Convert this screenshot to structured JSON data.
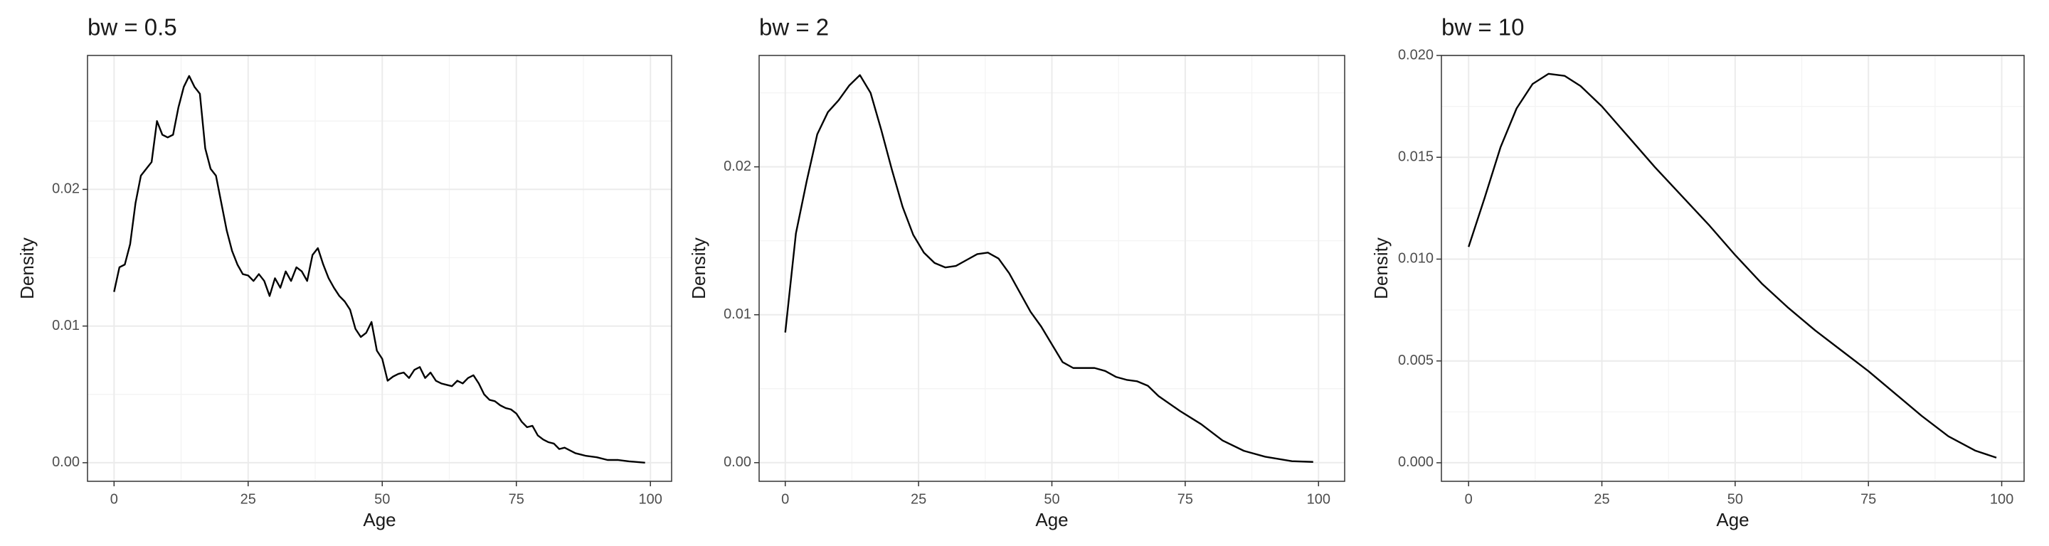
{
  "chart_data": [
    {
      "type": "line",
      "title": "bw = 0.5",
      "xlabel": "Age",
      "ylabel": "Density",
      "color": "#000000",
      "grid": true,
      "xlim": [
        -4.95,
        103.95
      ],
      "ylim": [
        -0.00136,
        0.0298
      ],
      "xticks": [
        0,
        25,
        50,
        75,
        100
      ],
      "yticks": [
        {
          "value": 0,
          "label": "0.00"
        },
        0.01,
        0.02
      ],
      "xminor": [
        12.5,
        37.5,
        62.5,
        87.5
      ],
      "yminor": [
        0.005,
        0.015,
        0.025
      ],
      "x": [
        0,
        1,
        2,
        3,
        4,
        5,
        6,
        7,
        8,
        9,
        10,
        11,
        12,
        13,
        14,
        15,
        16,
        17,
        18,
        19,
        20,
        21,
        22,
        23,
        24,
        25,
        26,
        27,
        28,
        29,
        30,
        31,
        32,
        33,
        34,
        35,
        36,
        37,
        38,
        39,
        40,
        41,
        42,
        43,
        44,
        45,
        46,
        47,
        48,
        49,
        50,
        51,
        52,
        53,
        54,
        55,
        56,
        57,
        58,
        59,
        60,
        61,
        62,
        63,
        64,
        65,
        66,
        67,
        68,
        69,
        70,
        71,
        72,
        73,
        74,
        75,
        76,
        77,
        78,
        79,
        80,
        81,
        82,
        83,
        84,
        85,
        86,
        87,
        88,
        90,
        92,
        94,
        96,
        99
      ],
      "values": [
        0.0125,
        0.0143,
        0.0145,
        0.016,
        0.019,
        0.021,
        0.0215,
        0.022,
        0.025,
        0.024,
        0.0238,
        0.024,
        0.026,
        0.0275,
        0.0283,
        0.0275,
        0.027,
        0.023,
        0.0215,
        0.021,
        0.019,
        0.017,
        0.0155,
        0.0145,
        0.0138,
        0.0137,
        0.0133,
        0.0138,
        0.0133,
        0.0122,
        0.0135,
        0.0128,
        0.014,
        0.0133,
        0.0143,
        0.014,
        0.0133,
        0.0152,
        0.0157,
        0.0145,
        0.0135,
        0.0128,
        0.0122,
        0.0118,
        0.0112,
        0.0098,
        0.0092,
        0.0095,
        0.0103,
        0.0082,
        0.0076,
        0.006,
        0.0063,
        0.0065,
        0.0066,
        0.0062,
        0.0068,
        0.007,
        0.0062,
        0.0066,
        0.006,
        0.0058,
        0.0057,
        0.0056,
        0.006,
        0.0058,
        0.0062,
        0.0064,
        0.0058,
        0.005,
        0.0046,
        0.0045,
        0.0042,
        0.004,
        0.0039,
        0.0036,
        0.003,
        0.0026,
        0.0027,
        0.002,
        0.0017,
        0.0015,
        0.0014,
        0.001,
        0.0011,
        0.0009,
        0.0007,
        0.0006,
        0.0005,
        0.0004,
        0.0002,
        0.0002,
        0.0001,
        0.0
      ]
    },
    {
      "type": "line",
      "title": "bw = 2",
      "xlabel": "Age",
      "ylabel": "Density",
      "color": "#000000",
      "grid": true,
      "xlim": [
        -4.9,
        104.9
      ],
      "ylim": [
        -0.00126,
        0.02753
      ],
      "xticks": [
        0,
        25,
        50,
        75,
        100
      ],
      "yticks": [
        {
          "value": 0,
          "label": "0.00"
        },
        0.01,
        0.02
      ],
      "xminor": [
        12.5,
        37.5,
        62.5,
        87.5
      ],
      "yminor": [
        0.005,
        0.015,
        0.025
      ],
      "x": [
        0,
        2,
        4,
        6,
        8,
        10,
        12,
        14,
        16,
        18,
        20,
        22,
        24,
        26,
        28,
        30,
        32,
        34,
        36,
        38,
        40,
        42,
        44,
        46,
        48,
        50,
        52,
        54,
        56,
        58,
        60,
        62,
        64,
        66,
        68,
        70,
        74,
        78,
        82,
        86,
        90,
        95,
        99
      ],
      "values": [
        0.0088,
        0.0155,
        0.019,
        0.0222,
        0.0237,
        0.0245,
        0.0255,
        0.0262,
        0.025,
        0.0225,
        0.0198,
        0.0173,
        0.0154,
        0.0142,
        0.0135,
        0.0132,
        0.0133,
        0.0137,
        0.0141,
        0.0142,
        0.0138,
        0.0128,
        0.0115,
        0.0102,
        0.0092,
        0.008,
        0.0068,
        0.0064,
        0.0064,
        0.0064,
        0.0062,
        0.0058,
        0.0056,
        0.0055,
        0.0052,
        0.0045,
        0.0035,
        0.0026,
        0.0015,
        0.0008,
        0.0004,
        0.0001,
        5e-05
      ]
    },
    {
      "type": "line",
      "title": "bw = 10",
      "xlabel": "Age",
      "ylabel": "Density",
      "color": "#000000",
      "grid": true,
      "xlim": [
        -5.1,
        104.2
      ],
      "ylim": [
        -0.00091,
        0.02
      ],
      "xticks": [
        0,
        25,
        50,
        75,
        100
      ],
      "yticks": [
        {
          "value": 0,
          "label": "0.000"
        },
        0.005,
        {
          "value": 0.01,
          "label": "0.010"
        },
        0.015,
        {
          "value": 0.02,
          "label": "0.020"
        }
      ],
      "xminor": [
        12.5,
        37.5,
        62.5,
        87.5
      ],
      "yminor": [
        0.0025,
        0.0075,
        0.0125,
        0.0175
      ],
      "x": [
        0,
        3,
        6,
        9,
        12,
        15,
        18,
        21,
        25,
        30,
        35,
        40,
        45,
        50,
        55,
        60,
        65,
        70,
        75,
        80,
        85,
        90,
        95,
        99
      ],
      "values": [
        0.0106,
        0.013,
        0.0155,
        0.0174,
        0.0186,
        0.0191,
        0.019,
        0.0185,
        0.0175,
        0.016,
        0.0145,
        0.0131,
        0.0117,
        0.0102,
        0.0088,
        0.0076,
        0.0065,
        0.0055,
        0.0045,
        0.0034,
        0.0023,
        0.0013,
        0.0006,
        0.00025
      ]
    }
  ]
}
